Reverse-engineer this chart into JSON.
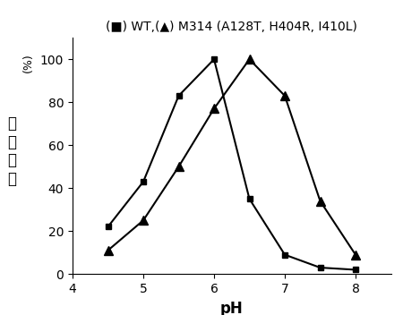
{
  "wt_x": [
    4.5,
    5.0,
    5.5,
    6.0,
    6.5,
    7.0,
    7.5,
    8.0
  ],
  "wt_y": [
    22,
    43,
    83,
    100,
    35,
    9,
    3,
    2
  ],
  "m314_x": [
    4.5,
    5.0,
    5.5,
    6.0,
    6.5,
    7.0,
    7.5,
    8.0
  ],
  "m314_y": [
    11,
    25,
    50,
    77,
    100,
    83,
    34,
    9
  ],
  "xlabel": "pH",
  "ylabel_pct": "(%)",
  "ylabel_chinese": "相对活性",
  "title": "(■) WT,(▲) M314 (A128T, H404R, I410L)",
  "xlim": [
    4.0,
    8.5
  ],
  "ylim": [
    0,
    110
  ],
  "xticks": [
    4,
    5,
    6,
    7,
    8
  ],
  "yticks": [
    0,
    20,
    40,
    60,
    80,
    100
  ],
  "line_color": "black",
  "bg_color": "white",
  "title_fontsize": 10,
  "axis_fontsize": 12,
  "tick_fontsize": 10
}
